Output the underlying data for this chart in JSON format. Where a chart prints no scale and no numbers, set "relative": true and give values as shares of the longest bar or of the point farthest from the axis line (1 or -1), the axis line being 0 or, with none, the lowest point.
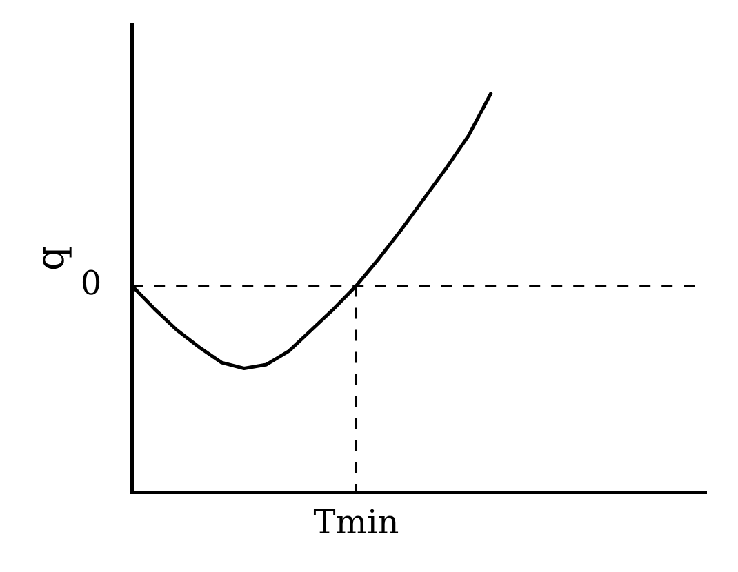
{
  "chart_data": {
    "type": "line",
    "relative": true,
    "ylabel": "q",
    "categories": [
      null,
      null,
      null,
      null,
      null,
      null,
      null,
      null,
      null,
      null,
      null,
      null,
      null,
      null,
      null,
      null,
      null
    ],
    "series": [
      {
        "color": "#000000",
        "values": [
          0,
          -0.12,
          -0.23,
          -0.32,
          -0.4,
          -0.43,
          -0.41,
          -0.34,
          -0.23,
          -0.12,
          0,
          0.14,
          0.29,
          0.45,
          0.61,
          0.78,
          1
        ]
      }
    ],
    "ref_lines": [
      {
        "axis": "y",
        "value": 0,
        "label": "0",
        "line_style": "dashed",
        "color": "#000000"
      },
      {
        "axis": "x",
        "value": "Tmin",
        "line_style": "dashed",
        "color": "#000000"
      }
    ],
    "grid": false,
    "legend": false,
    "marker": "none",
    "line_style": "solid"
  }
}
